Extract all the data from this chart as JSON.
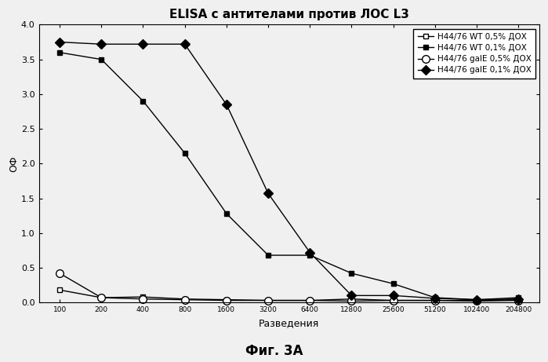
{
  "title": "ELISA с антителами против ЛОС L3",
  "xlabel": "Разведения",
  "ylabel": "ОФ",
  "footer": "Фиг. 3A",
  "x_labels": [
    "100",
    "200",
    "400",
    "800",
    "1600",
    "3200",
    "6400",
    "12800",
    "25600",
    "51200",
    "102400",
    "204800"
  ],
  "x_values": [
    100,
    200,
    400,
    800,
    1600,
    3200,
    6400,
    12800,
    25600,
    51200,
    102400,
    204800
  ],
  "series": [
    {
      "label": "H44/76 WT 0,5% ДОХ",
      "y": [
        0.18,
        0.07,
        0.08,
        0.05,
        0.04,
        0.03,
        0.03,
        0.05,
        0.03,
        0.03,
        0.03,
        0.04
      ],
      "marker": "s",
      "fillstyle": "none",
      "linewidth": 1.0
    },
    {
      "label": "H44/76 WT 0,1% ДОХ",
      "y": [
        3.6,
        3.5,
        2.9,
        2.15,
        1.28,
        0.68,
        0.68,
        0.42,
        0.27,
        0.07,
        0.04,
        0.07
      ],
      "marker": "s",
      "fillstyle": "full",
      "linewidth": 1.0
    },
    {
      "label": "H44/76 galE 0,5% ДОХ",
      "y": [
        0.42,
        0.07,
        0.05,
        0.04,
        0.03,
        0.03,
        0.03,
        0.02,
        0.03,
        0.03,
        0.02,
        0.03
      ],
      "marker": "o",
      "fillstyle": "none",
      "linewidth": 1.0
    },
    {
      "label": "H44/76 galE 0,1% ДОХ",
      "y": [
        3.75,
        3.72,
        3.72,
        3.72,
        2.85,
        1.57,
        0.72,
        0.1,
        0.1,
        0.06,
        0.04,
        0.05
      ],
      "marker": "D",
      "fillstyle": "full",
      "linewidth": 1.0
    }
  ],
  "ylim": [
    0,
    4.0
  ],
  "yticks": [
    0.0,
    0.5,
    1.0,
    1.5,
    2.0,
    2.5,
    3.0,
    3.5,
    4.0
  ],
  "background_color": "#f0f0f0",
  "plot_bg": "#f0f0f0",
  "legend_loc": "upper right"
}
